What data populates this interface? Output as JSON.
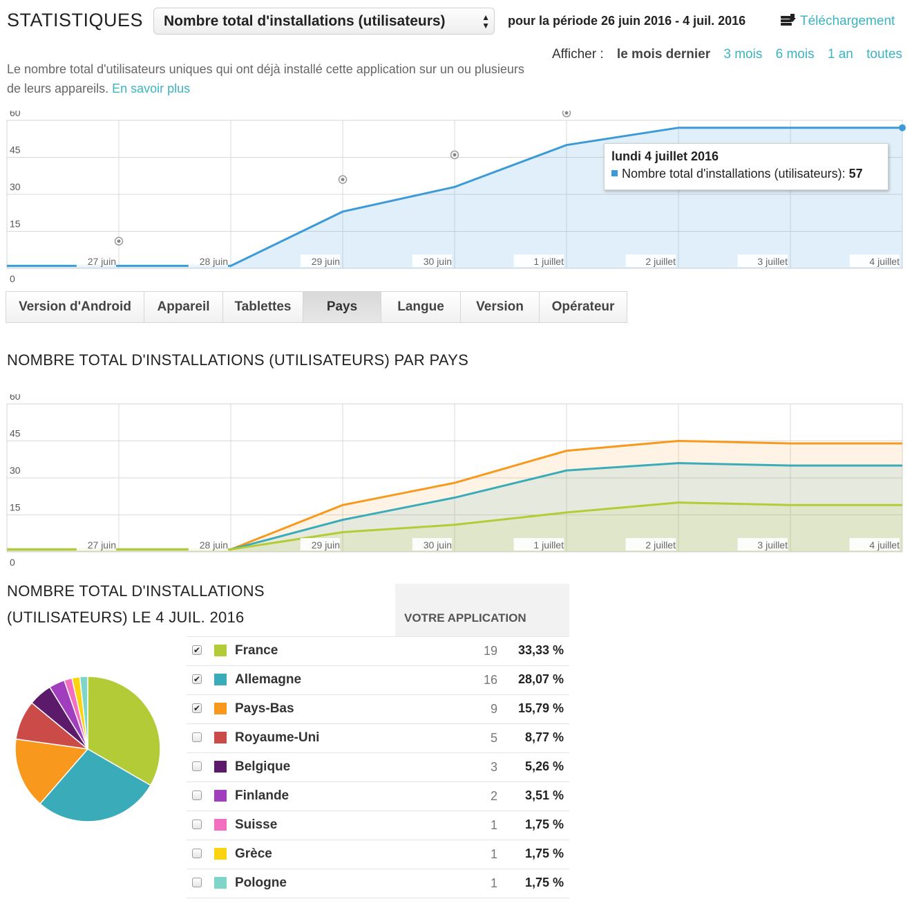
{
  "header": {
    "title": "STATISTIQUES",
    "metric_select": "Nombre total d'installations (utilisateurs)",
    "period": "pour la période 26 juin 2016 - 4 juil. 2016",
    "download": "Téléchargement",
    "show_label": "Afficher :",
    "ranges": [
      "le mois dernier",
      "3 mois",
      "6 mois",
      "1 an",
      "toutes"
    ],
    "description": "Le nombre total d'utilisateurs uniques qui ont déjà installé cette application sur un ou plusieurs de leurs appareils.",
    "learn_more": "En savoir plus"
  },
  "colors": {
    "line_blue": "#3d9ad8",
    "link": "#3bb3c3",
    "france": "#b3cb36",
    "allemagne": "#3aabb8",
    "pays_bas": "#f8991d",
    "royaume_uni": "#cb4b48",
    "belgique": "#5c1a6a",
    "finlande": "#a13ebd",
    "suisse": "#f46ec0",
    "grece": "#fbd40f",
    "pologne": "#7fd6c8"
  },
  "tabs": [
    "Version d'Android",
    "Appareil",
    "Tablettes",
    "Pays",
    "Langue",
    "Version",
    "Opérateur"
  ],
  "active_tab": "Pays",
  "tooltip": {
    "date": "lundi 4 juillet 2016",
    "series": "Nombre total d'installations (utilisateurs):",
    "value": "57"
  },
  "section_country_title": "NOMBRE TOTAL D'INSTALLATIONS (UTILISATEURS) PAR PAYS",
  "section_pie_title_1": "NOMBRE TOTAL D'INSTALLATIONS",
  "section_pie_title_2": "(UTILISATEURS) LE 4 JUIL. 2016",
  "table": {
    "column_header": "VOTRE APPLICATION",
    "rows": [
      {
        "country": "France",
        "count": "19",
        "pct": "33,33 %",
        "checked": true
      },
      {
        "country": "Allemagne",
        "count": "16",
        "pct": "28,07 %",
        "checked": true
      },
      {
        "country": "Pays-Bas",
        "count": "9",
        "pct": "15,79 %",
        "checked": true
      },
      {
        "country": "Royaume-Uni",
        "count": "5",
        "pct": "8,77 %",
        "checked": false
      },
      {
        "country": "Belgique",
        "count": "3",
        "pct": "5,26 %",
        "checked": false
      },
      {
        "country": "Finlande",
        "count": "2",
        "pct": "3,51 %",
        "checked": false
      },
      {
        "country": "Suisse",
        "count": "1",
        "pct": "1,75 %",
        "checked": false
      },
      {
        "country": "Grèce",
        "count": "1",
        "pct": "1,75 %",
        "checked": false
      },
      {
        "country": "Pologne",
        "count": "1",
        "pct": "1,75 %",
        "checked": false
      }
    ]
  },
  "chart_data": [
    {
      "type": "area",
      "x": [
        "26 juin",
        "27 juin",
        "28 juin",
        "29 juin",
        "30 juin",
        "1 juillet",
        "2 juillet",
        "3 juillet",
        "4 juillet"
      ],
      "x_tick_labels": [
        "27 juin",
        "28 juin",
        "29 juin",
        "30 juin",
        "1 juillet",
        "2 juillet",
        "3 juillet",
        "4 juillet"
      ],
      "series": [
        {
          "name": "Nombre total d'installations (utilisateurs)",
          "values": [
            1,
            1,
            1,
            23,
            33,
            50,
            57,
            57,
            57
          ]
        }
      ],
      "y_ticks": [
        "0",
        "15",
        "30",
        "45",
        "60"
      ],
      "ylim": [
        0,
        60
      ],
      "grid": true
    },
    {
      "type": "area",
      "x": [
        "26 juin",
        "27 juin",
        "28 juin",
        "29 juin",
        "30 juin",
        "1 juillet",
        "2 juillet",
        "3 juillet",
        "4 juillet"
      ],
      "x_tick_labels": [
        "27 juin",
        "28 juin",
        "29 juin",
        "30 juin",
        "1 juillet",
        "2 juillet",
        "3 juillet",
        "4 juillet"
      ],
      "series": [
        {
          "name": "Pays-Bas",
          "values": [
            1,
            1,
            1,
            19,
            28,
            41,
            45,
            44,
            44
          ]
        },
        {
          "name": "Allemagne",
          "values": [
            1,
            1,
            1,
            13,
            22,
            33,
            36,
            35,
            35
          ]
        },
        {
          "name": "France",
          "values": [
            1,
            1,
            1,
            8,
            11,
            16,
            20,
            19,
            19
          ]
        }
      ],
      "y_ticks": [
        "0",
        "15",
        "30",
        "45",
        "60"
      ],
      "ylim": [
        0,
        60
      ],
      "grid": true
    },
    {
      "type": "pie",
      "categories": [
        "France",
        "Allemagne",
        "Pays-Bas",
        "Royaume-Uni",
        "Belgique",
        "Finlande",
        "Suisse",
        "Grèce",
        "Pologne"
      ],
      "values": [
        19,
        16,
        9,
        5,
        3,
        2,
        1,
        1,
        1
      ]
    }
  ]
}
